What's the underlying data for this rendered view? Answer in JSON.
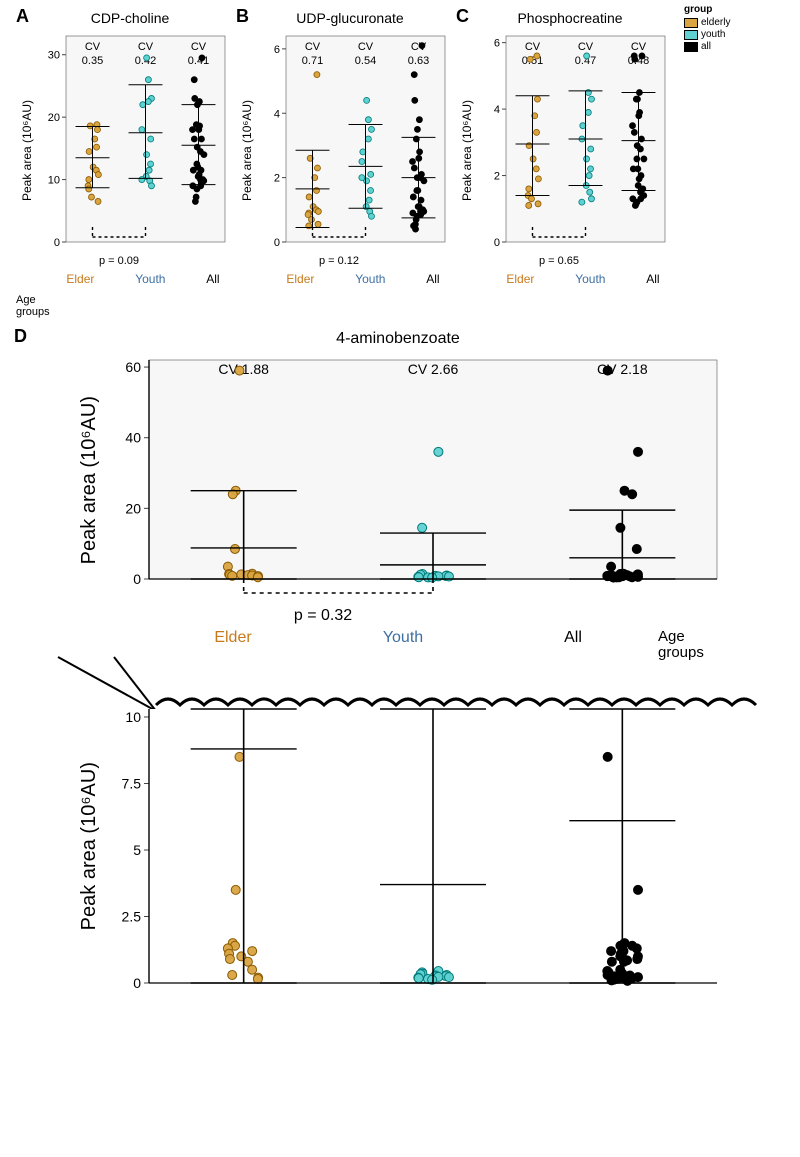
{
  "colors": {
    "elderly": "#d9a441",
    "elderly_stroke": "#8a5a00",
    "youth": "#5fd1d1",
    "youth_stroke": "#007a7a",
    "all": "#000000",
    "bg": "#ffffff",
    "panel_bg": "#f7f7f7",
    "border": "#555555",
    "tick": "#444444",
    "axis": "#000000",
    "elder_text": "#c77a1b",
    "youth_text": "#3d6fa3"
  },
  "legend": {
    "title": "group",
    "items": [
      {
        "label": "elderly",
        "key": "elderly"
      },
      {
        "label": "youth",
        "key": "youth"
      },
      {
        "label": "all",
        "key": "all"
      }
    ]
  },
  "age_groups_label": "Age\ngroups",
  "panels_top": [
    {
      "id": "A",
      "title": "CDP-choline",
      "ylab": "Peak area (10⁶AU)",
      "ylim": [
        0,
        33
      ],
      "yticks": [
        0,
        10,
        20,
        30
      ],
      "cv": {
        "Elder": "0.35",
        "Youth": "0.42",
        "All": "0.41"
      },
      "pval": "p = 0.09",
      "stats": {
        "Elder": {
          "mean": 13.5,
          "lo": 8.7,
          "hi": 18.5
        },
        "Youth": {
          "mean": 17.5,
          "lo": 10.2,
          "hi": 25.2
        },
        "All": {
          "mean": 15.5,
          "lo": 9.2,
          "hi": 22.0
        }
      },
      "points": {
        "Elder": [
          18.8,
          18.6,
          18.0,
          16.5,
          15.2,
          14.5,
          12.0,
          11.5,
          10.8,
          10.0,
          9.0,
          7.2,
          6.5,
          8.5
        ],
        "Youth": [
          29.5,
          26.0,
          23.0,
          22.5,
          22.0,
          18.0,
          16.5,
          14.0,
          12.5,
          11.5,
          10.5,
          9.8,
          9.0,
          10.0
        ],
        "All": [
          29.5,
          26.0,
          23.0,
          22.5,
          22.0,
          18.8,
          18.6,
          18.0,
          18.0,
          16.5,
          16.5,
          15.2,
          14.5,
          14.0,
          12.5,
          12.0,
          11.5,
          11.5,
          10.8,
          10.5,
          10.0,
          10.0,
          9.8,
          9.0,
          9.0,
          8.5,
          7.2,
          6.5
        ]
      }
    },
    {
      "id": "B",
      "title": "UDP-glucuronate",
      "ylab": "Peak area (10⁶AU)",
      "ylim": [
        0,
        6.4
      ],
      "yticks": [
        0,
        2,
        4,
        6
      ],
      "cv": {
        "Elder": "0.71",
        "Youth": "0.54",
        "All": "0.63"
      },
      "pval": "p = 0.12",
      "stats": {
        "Elder": {
          "mean": 1.65,
          "lo": 0.45,
          "hi": 2.85
        },
        "Youth": {
          "mean": 2.35,
          "lo": 1.05,
          "hi": 3.65
        },
        "All": {
          "mean": 2.0,
          "lo": 0.75,
          "hi": 3.25
        }
      },
      "points": {
        "Elder": [
          5.2,
          2.6,
          2.3,
          2.0,
          1.6,
          1.4,
          1.1,
          1.0,
          0.95,
          0.9,
          0.85,
          0.7,
          0.55,
          0.5
        ],
        "Youth": [
          4.4,
          3.8,
          3.5,
          3.2,
          2.8,
          2.5,
          2.1,
          1.9,
          1.6,
          1.3,
          1.1,
          0.95,
          0.8,
          2.0
        ],
        "All": [
          6.1,
          5.2,
          4.4,
          3.8,
          3.5,
          3.2,
          2.8,
          2.6,
          2.5,
          2.3,
          2.1,
          2.0,
          2.0,
          1.9,
          1.6,
          1.6,
          1.4,
          1.3,
          1.1,
          1.1,
          1.0,
          0.95,
          0.95,
          0.9,
          0.85,
          0.8,
          0.7,
          0.55,
          0.5,
          0.4
        ]
      }
    },
    {
      "id": "C",
      "title": "Phosphocreatine",
      "ylab": "Peak area (10⁶AU)",
      "ylim": [
        0,
        6.2
      ],
      "yticks": [
        0,
        2,
        4,
        6
      ],
      "cv": {
        "Elder": "0.51",
        "Youth": "0.47",
        "All": "0.48"
      },
      "pval": "p = 0.65",
      "stats": {
        "Elder": {
          "mean": 2.95,
          "lo": 1.4,
          "hi": 4.4
        },
        "Youth": {
          "mean": 3.1,
          "lo": 1.7,
          "hi": 4.55
        },
        "All": {
          "mean": 3.05,
          "lo": 1.55,
          "hi": 4.5
        }
      },
      "points": {
        "Elder": [
          5.6,
          5.5,
          4.3,
          3.8,
          3.3,
          2.9,
          2.5,
          2.2,
          1.9,
          1.6,
          1.4,
          1.3,
          1.15,
          1.1
        ],
        "Youth": [
          5.6,
          4.5,
          4.3,
          3.9,
          3.5,
          3.1,
          2.8,
          2.5,
          2.2,
          2.0,
          1.7,
          1.5,
          1.3,
          1.2
        ],
        "All": [
          5.6,
          5.6,
          5.5,
          4.5,
          4.3,
          4.3,
          3.9,
          3.8,
          3.5,
          3.3,
          3.1,
          2.9,
          2.8,
          2.5,
          2.5,
          2.2,
          2.2,
          2.0,
          1.9,
          1.7,
          1.6,
          1.5,
          1.4,
          1.3,
          1.3,
          1.2,
          1.15,
          1.1
        ]
      }
    }
  ],
  "panel_D": {
    "id": "D",
    "title": "4-aminobenzoate",
    "ylab": "Peak area (10⁶AU)",
    "upper": {
      "ylim": [
        0,
        62
      ],
      "yticks": [
        0,
        20,
        40,
        60
      ],
      "cv": {
        "Elder": "CV  1.88",
        "Youth": "CV  2.66",
        "All": "CV  2.18"
      },
      "pval": "p = 0.32",
      "stats": {
        "Elder": {
          "mean": 8.8,
          "lo": 0,
          "hi": 25.0
        },
        "Youth": {
          "mean": 4.0,
          "lo": 0,
          "hi": 13.0
        },
        "All": {
          "mean": 6.0,
          "lo": 0,
          "hi": 19.5
        }
      },
      "points": {
        "Elder": [
          59,
          25,
          24,
          8.5,
          3.5,
          1.5,
          1.4,
          1.3,
          1.2,
          1.1,
          1.0,
          0.9,
          0.8,
          0.5
        ],
        "Youth": [
          36,
          14.5,
          1.4,
          1.2,
          1.0,
          0.9,
          0.85,
          0.8,
          0.75,
          0.7,
          0.6,
          0.5,
          0.45,
          0.4
        ],
        "All": [
          59,
          36,
          25,
          24,
          14.5,
          8.5,
          3.5,
          1.5,
          1.4,
          1.4,
          1.3,
          1.2,
          1.2,
          1.1,
          1.0,
          1.0,
          0.9,
          0.9,
          0.85,
          0.8,
          0.8,
          0.75,
          0.7,
          0.6,
          0.5,
          0.5,
          0.45,
          0.4
        ]
      }
    },
    "lower": {
      "ylim": [
        0,
        10.3
      ],
      "yticks": [
        0.0,
        2.5,
        5.0,
        7.5,
        10.0
      ],
      "stats": {
        "Elder": {
          "mean": 8.8,
          "lo": 0,
          "hi": 10.3
        },
        "Youth": {
          "mean": 3.7,
          "lo": 0,
          "hi": 10.3
        },
        "All": {
          "mean": 6.1,
          "lo": 0,
          "hi": 10.3
        }
      },
      "points": {
        "Elder": [
          8.5,
          3.5,
          1.5,
          1.4,
          1.3,
          1.2,
          1.1,
          1.0,
          0.9,
          0.8,
          0.5,
          0.3,
          0.2,
          0.15
        ],
        "Youth": [
          0.45,
          0.4,
          0.35,
          0.33,
          0.3,
          0.28,
          0.26,
          0.25,
          0.23,
          0.22,
          0.2,
          0.18,
          0.15,
          0.12
        ],
        "All": [
          8.5,
          3.5,
          1.5,
          1.4,
          1.4,
          1.3,
          1.2,
          1.2,
          1.1,
          1.0,
          1.0,
          0.9,
          0.9,
          0.85,
          0.8,
          0.8,
          0.5,
          0.45,
          0.4,
          0.35,
          0.3,
          0.28,
          0.25,
          0.22,
          0.2,
          0.18,
          0.15,
          0.12,
          0.1,
          0.08
        ]
      }
    },
    "xcats": [
      "Elder",
      "Youth",
      "All"
    ],
    "age_groups_label": "Age\ngroups"
  },
  "categories": [
    "Elder",
    "Youth",
    "All"
  ],
  "cat_colors": {
    "Elder": "#c77a1b",
    "Youth": "#3d6fa3",
    "All": "#000000"
  },
  "dot_r_small": 3.0,
  "dot_r_big": 4.5,
  "jitter_small": 6,
  "jitter_big": 16
}
